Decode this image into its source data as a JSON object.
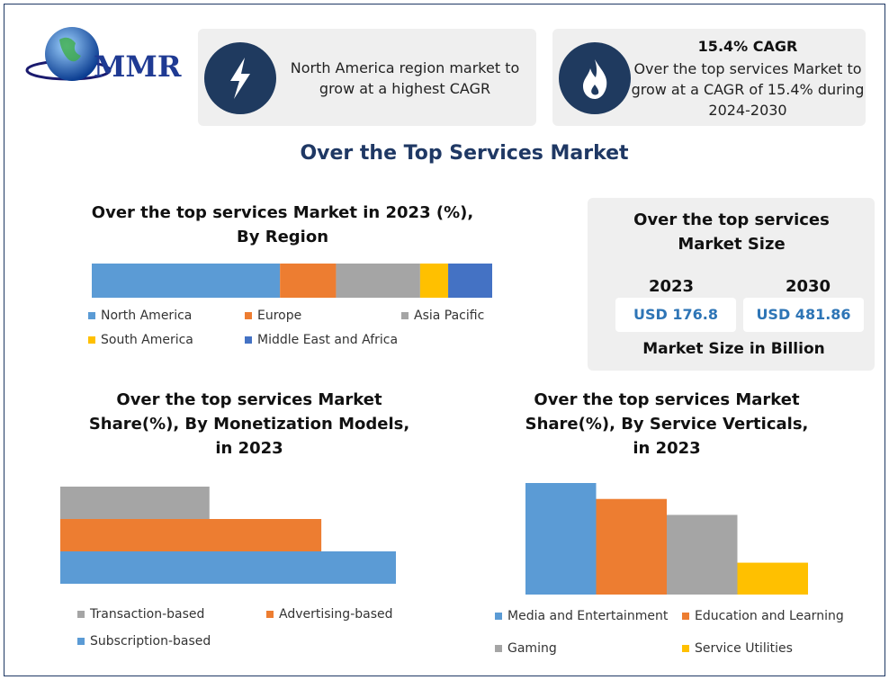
{
  "logo": "MMR",
  "highlights": [
    {
      "text": "North America region market to grow at a highest CAGR"
    },
    {
      "heading": "15.4% CAGR",
      "text": "Over the top services Market to grow at a CAGR of 15.4% during 2024-2030"
    }
  ],
  "title": "Over the Top Services Market",
  "market_size": {
    "title": "Over the top services Market Size",
    "columns": [
      {
        "year": "2023",
        "value": "USD 176.8"
      },
      {
        "year": "2030",
        "value": "USD 481.86"
      }
    ],
    "note": "Market Size in Billion"
  },
  "chart_data": [
    {
      "type": "stacked_bar",
      "title": "Over the top services Market in 2023 (%), By Region",
      "categories": [
        "North America",
        "Europe",
        "Asia Pacific",
        "South America",
        "Middle East and Africa"
      ],
      "values": [
        47,
        14,
        21,
        7,
        11
      ],
      "colors": [
        "#5b9bd5",
        "#ed7d31",
        "#a5a5a5",
        "#ffc000",
        "#4472c4"
      ]
    },
    {
      "type": "hbar",
      "title": "Over the top services Market Share(%), By Monetization Models, in 2023",
      "categories": [
        "Transaction-based",
        "Advertising-based",
        "Subscription-based"
      ],
      "values": [
        20,
        35,
        45
      ],
      "colors": [
        "#a5a5a5",
        "#ed7d31",
        "#5b9bd5"
      ]
    },
    {
      "type": "vbar",
      "title": "Over the top services Market Share(%), By Service Verticals, in 2023",
      "categories": [
        "Media and Entertainment",
        "Education and Learning",
        "Gaming",
        "Service Utilities"
      ],
      "values": [
        35,
        30,
        25,
        10
      ],
      "colors": [
        "#5b9bd5",
        "#ed7d31",
        "#a5a5a5",
        "#ffc000"
      ]
    }
  ]
}
